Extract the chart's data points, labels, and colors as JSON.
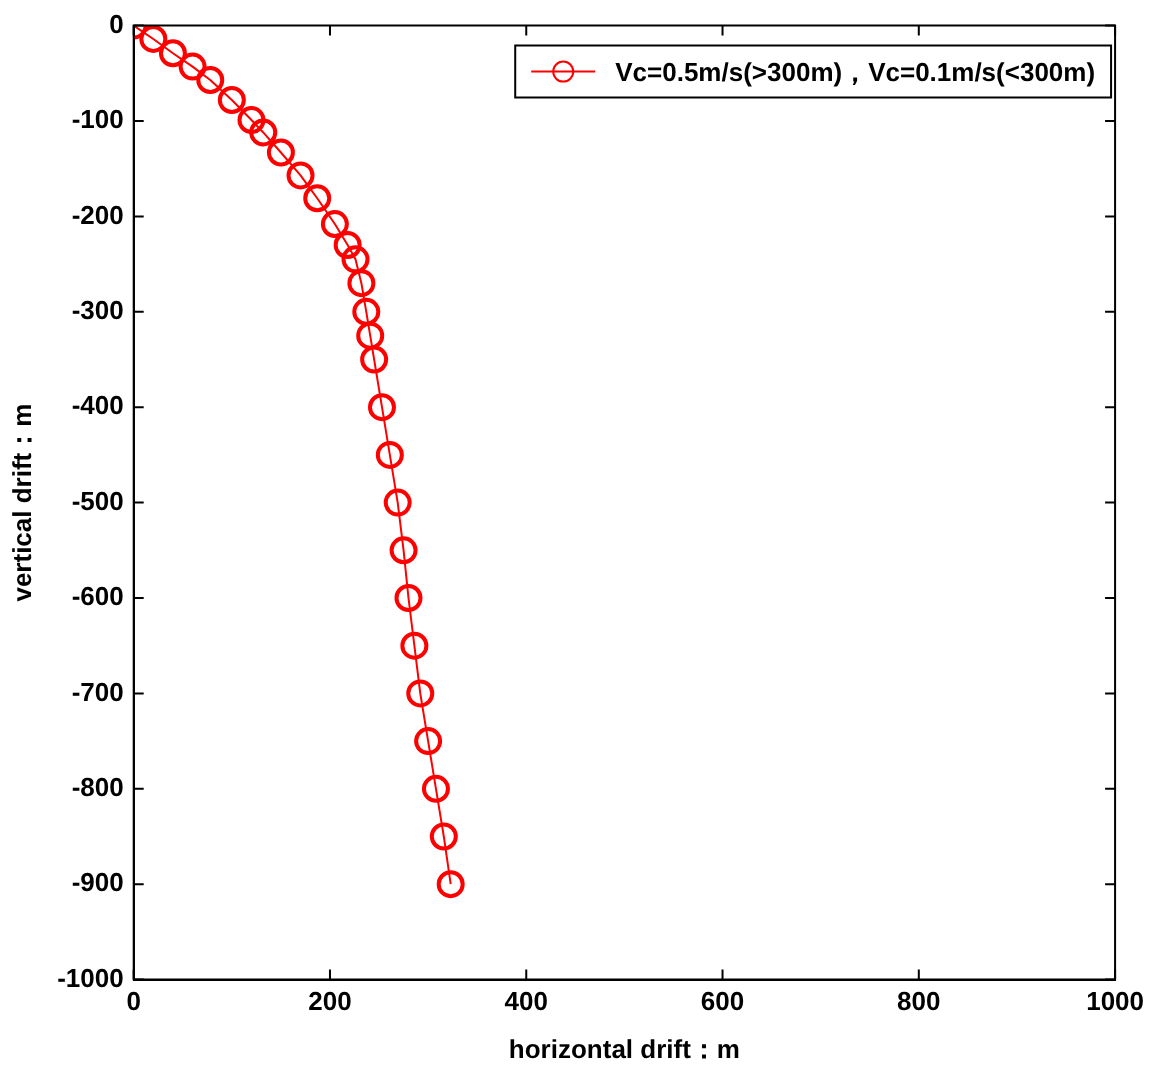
{
  "chart_data": {
    "type": "line",
    "xlabel": "horizontal drift：m",
    "ylabel": "vertical drift：m",
    "x": [
      0,
      20,
      40,
      60,
      78,
      100,
      120,
      132,
      150,
      170,
      187,
      205,
      218,
      226,
      232,
      237,
      241,
      245,
      253,
      261,
      269,
      275,
      280,
      286,
      292,
      300,
      308,
      316,
      323
    ],
    "series": [
      {
        "name": "Vc=0.5m/s(>300m)，Vc=0.1m/s(<300m)",
        "color": "#ff0000",
        "values": [
          0,
          -14,
          -29,
          -43,
          -57,
          -78,
          -99,
          -112,
          -133,
          -157,
          -181,
          -208,
          -230,
          -245,
          -270,
          -300,
          -325,
          -350,
          -400,
          -450,
          -500,
          -550,
          -600,
          -650,
          -700,
          -750,
          -800,
          -850,
          -900
        ]
      }
    ],
    "xlim": [
      0,
      1000
    ],
    "xticks": [
      0,
      200,
      400,
      600,
      800,
      1000
    ],
    "ylim": [
      -1000,
      0
    ],
    "yticks": [
      -1000,
      -900,
      -800,
      -700,
      -600,
      -500,
      -400,
      -300,
      -200,
      -100,
      0
    ],
    "grid": false,
    "legend": "top right",
    "marker": "circle",
    "line_style": "solid"
  }
}
